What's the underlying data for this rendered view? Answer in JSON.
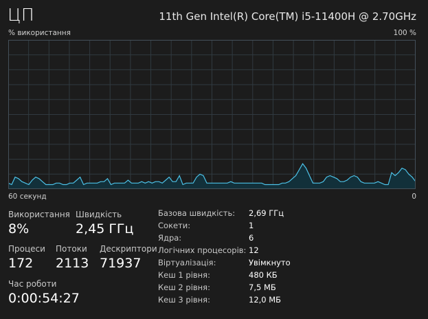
{
  "header": {
    "title": "ЦП",
    "cpu_model": "11th Gen Intel(R) Core(TM) i5-11400H @ 2.70GHz"
  },
  "graph": {
    "ylabel": "% використання",
    "ymax_label": "100 %",
    "xlabel_left": "60 секунд",
    "xlabel_right": "0",
    "line_color": "#4cc2e8",
    "fill_color": "#12303a",
    "grid_color": "#303a40",
    "border_color": "#44505a",
    "grid": true,
    "ylim": [
      0,
      100
    ],
    "series": [
      {
        "values": [
          4,
          3,
          8,
          7,
          5,
          4,
          3,
          6,
          8,
          7,
          5,
          3,
          3,
          3,
          4,
          4,
          3,
          3,
          4,
          4,
          6,
          8,
          3,
          4,
          4,
          4,
          4,
          5,
          5,
          7,
          3,
          4,
          4,
          4,
          4,
          6,
          4,
          4,
          4,
          5,
          4,
          5,
          4,
          5,
          5,
          4,
          6,
          8,
          5,
          5,
          9,
          3,
          4,
          4,
          4,
          8,
          10,
          9,
          4,
          4,
          4,
          4,
          4,
          4,
          4,
          5,
          4,
          4,
          4,
          4,
          4,
          4,
          4,
          4,
          4,
          3,
          3,
          3,
          3,
          3,
          4,
          4,
          5,
          7,
          9,
          13,
          17,
          14,
          9,
          4,
          4,
          4,
          5,
          8,
          9,
          8,
          7,
          5,
          5,
          6,
          8,
          9,
          8,
          5,
          4,
          4,
          4,
          4,
          5,
          4,
          3,
          3,
          11,
          9,
          11,
          14,
          13,
          10,
          8,
          5
        ]
      }
    ]
  },
  "stats": {
    "utilization_label": "Використання",
    "utilization_value": "8%",
    "speed_label": "Швидкість",
    "speed_value": "2,45 ГГц",
    "processes_label": "Процеси",
    "processes_value": "172",
    "threads_label": "Потоки",
    "threads_value": "2113",
    "handles_label": "Дескриптори",
    "handles_value": "71937",
    "uptime_label": "Час роботи",
    "uptime_value": "0:00:54:27"
  },
  "specs": [
    {
      "key": "Базова швидкість:",
      "value": "2,69 ГГц"
    },
    {
      "key": "Сокети:",
      "value": "1"
    },
    {
      "key": "Ядра:",
      "value": "6"
    },
    {
      "key": "Логічних процесорів:",
      "value": "12"
    },
    {
      "key": "Віртуалізація:",
      "value": "Увімкнуто"
    },
    {
      "key": "Кеш 1 рівня:",
      "value": "480 КБ"
    },
    {
      "key": "Кеш 2 рівня:",
      "value": "7,5 МБ"
    },
    {
      "key": "Кеш 3 рівня:",
      "value": "12,0 МБ"
    }
  ]
}
